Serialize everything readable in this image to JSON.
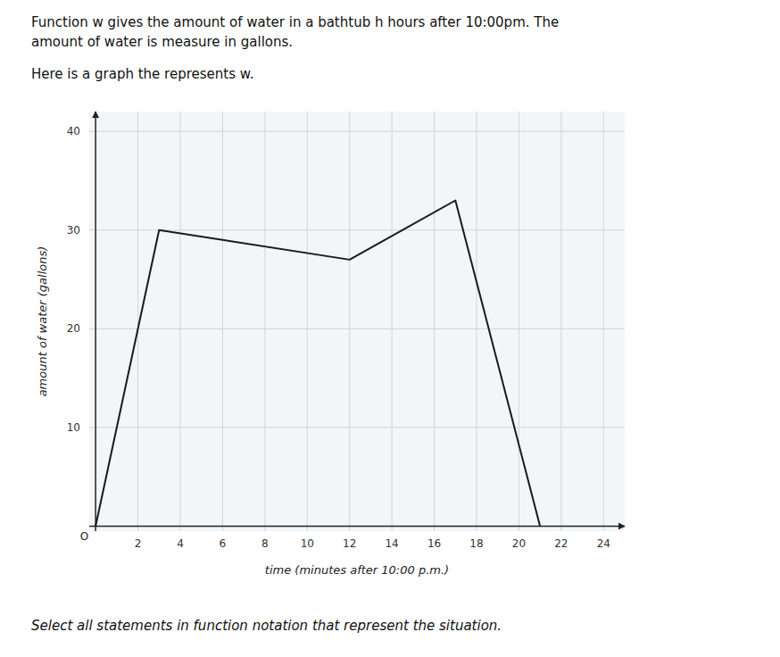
{
  "chart_data": {
    "type": "line",
    "title": [
      "Function w gives the amount of water in a bathtub h hours after 10:00pm. The",
      "amount of water is measure in gallons."
    ],
    "subtitle": "Here is a graph the represents w.",
    "footer": "Select all statements in function notation that represent the situation.",
    "x_label": "time (minutes after 10:00 p.m.)",
    "y_label": "amount of water (gallons)",
    "x": [
      0,
      3,
      12,
      17,
      21
    ],
    "values": [
      0,
      30,
      27,
      33,
      0
    ],
    "color": "#1a1a1a",
    "xlim": [
      -0.3,
      25
    ],
    "ylim": [
      -0.5,
      42
    ],
    "xticks": [
      2,
      4,
      6,
      8,
      10,
      12,
      14,
      16,
      18,
      20,
      22,
      24
    ],
    "yticks": [
      10,
      20,
      30,
      40
    ],
    "grid": true,
    "annotations": [
      {
        "text": "O",
        "x": 0,
        "y": 0
      }
    ]
  }
}
